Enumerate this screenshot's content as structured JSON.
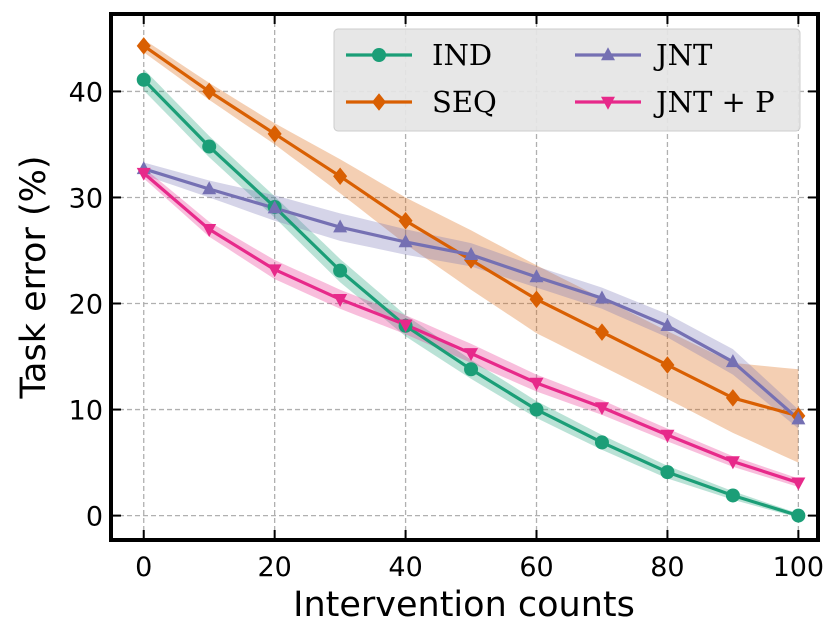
{
  "chart_data": {
    "type": "line",
    "title": "",
    "xlabel": "Intervention counts",
    "ylabel": "Task error (%)",
    "xlim": [
      -5,
      103
    ],
    "ylim": [
      -2.3,
      47.3
    ],
    "xticks": [
      0,
      20,
      40,
      60,
      80,
      100
    ],
    "yticks": [
      0,
      10,
      20,
      30,
      40
    ],
    "grid": true,
    "legend_position": "top-right",
    "series": [
      {
        "name": "IND",
        "color": "#1b9e77",
        "marker": "circle",
        "x": [
          0,
          10,
          20,
          30,
          40,
          50,
          60,
          70,
          80,
          90,
          100
        ],
        "values": [
          41.1,
          34.8,
          29.1,
          23.1,
          17.9,
          13.8,
          10.0,
          6.9,
          4.1,
          1.9,
          0.0
        ],
        "band": [
          1.0,
          1.0,
          1.0,
          1.1,
          1.0,
          0.9,
          0.8,
          0.7,
          0.6,
          0.4,
          0.2
        ]
      },
      {
        "name": "SEQ",
        "color": "#d95f02",
        "marker": "diamond",
        "x": [
          0,
          10,
          20,
          30,
          40,
          50,
          60,
          70,
          80,
          90,
          100
        ],
        "values": [
          44.3,
          40.0,
          36.0,
          32.0,
          27.8,
          24.1,
          20.4,
          17.3,
          14.2,
          11.1,
          9.4
        ],
        "band": [
          0.6,
          0.8,
          1.0,
          1.6,
          2.2,
          2.8,
          3.2,
          3.2,
          3.2,
          3.3,
          4.4
        ]
      },
      {
        "name": "JNT",
        "color": "#7570b3",
        "marker": "triangle-up",
        "x": [
          0,
          10,
          20,
          30,
          40,
          50,
          60,
          70,
          80,
          90,
          100
        ],
        "values": [
          32.7,
          30.8,
          29.0,
          27.2,
          25.8,
          24.6,
          22.5,
          20.5,
          17.9,
          14.5,
          9.1
        ],
        "band": [
          0.6,
          0.8,
          1.2,
          1.3,
          1.2,
          1.1,
          1.0,
          1.0,
          1.1,
          1.2,
          0.9
        ]
      },
      {
        "name": "JNT + P",
        "color": "#e7298a",
        "marker": "triangle-down",
        "x": [
          0,
          10,
          20,
          30,
          40,
          50,
          60,
          70,
          80,
          90,
          100
        ],
        "values": [
          32.3,
          27.0,
          23.2,
          20.4,
          18.0,
          15.3,
          12.5,
          10.2,
          7.6,
          5.1,
          3.1
        ],
        "band": [
          0.5,
          0.7,
          0.9,
          0.9,
          0.9,
          0.9,
          0.8,
          0.7,
          0.6,
          0.5,
          0.4
        ]
      }
    ]
  }
}
